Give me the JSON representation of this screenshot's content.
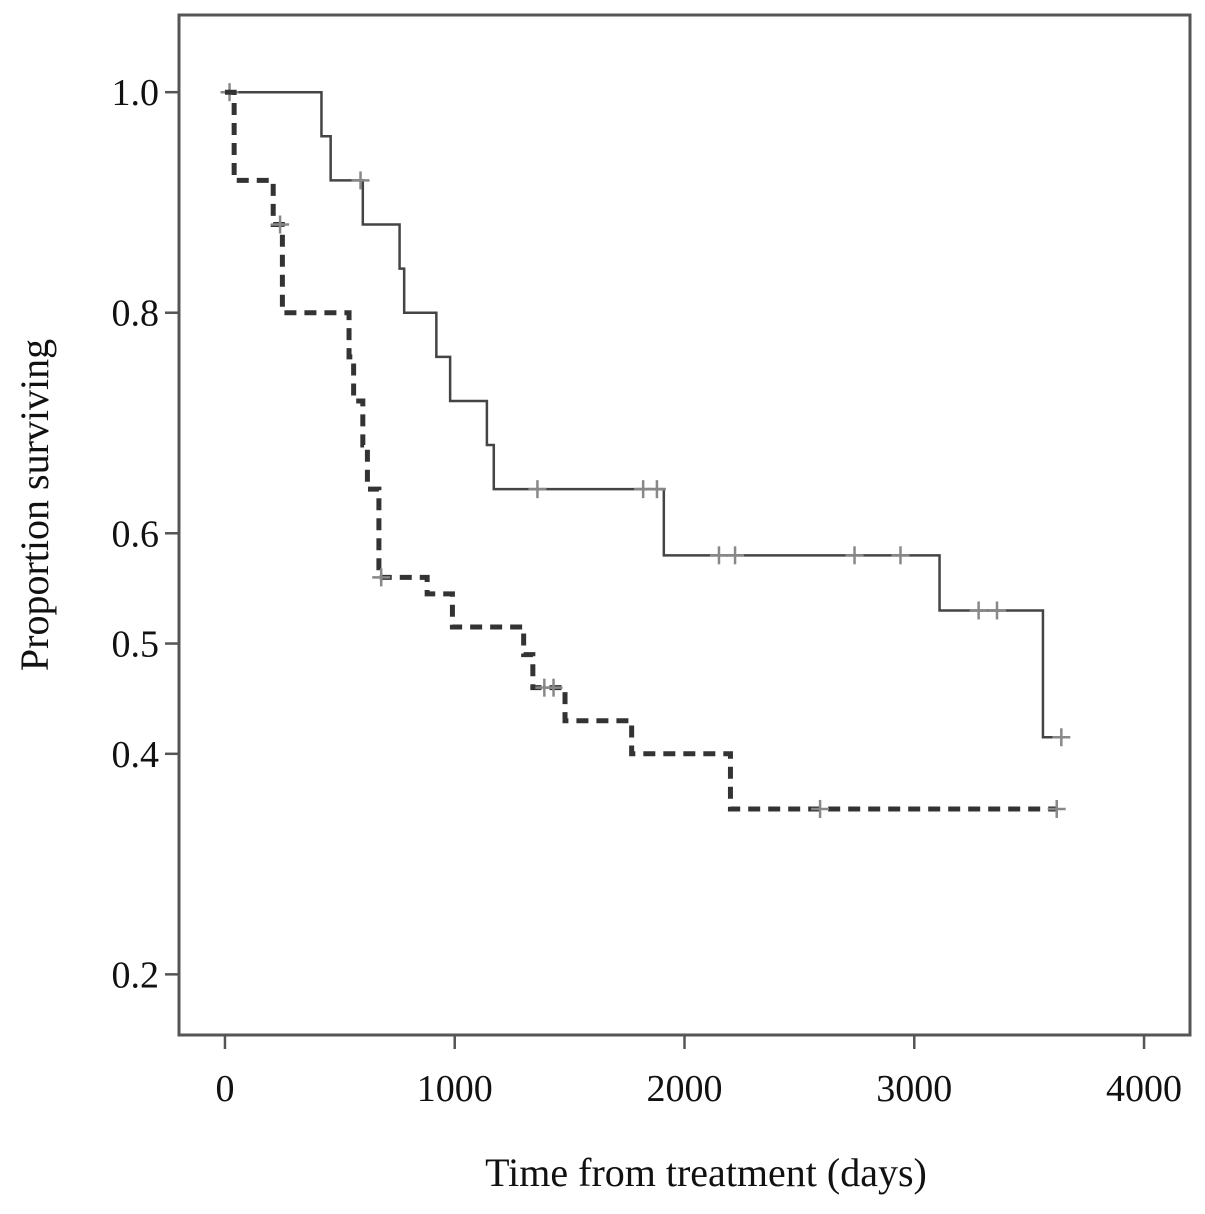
{
  "chart_data": {
    "type": "line",
    "title": "",
    "xlabel": "Time from treatment (days)",
    "ylabel": "Proportion surviving",
    "xlim": [
      -200,
      4200
    ],
    "ylim": [
      0.145,
      1.07
    ],
    "x_ticks": [
      0,
      1000,
      2000,
      3000,
      4000
    ],
    "x_tick_labels": [
      "0",
      "1000",
      "2000",
      "3000",
      "4000"
    ],
    "y_ticks": [
      0.2,
      0.4,
      0.5,
      0.6,
      0.8,
      1.0
    ],
    "y_tick_labels": [
      "0.2",
      "0.4",
      "0.5",
      "0.6",
      "0.8",
      "1.0"
    ],
    "grid": false,
    "legend": "none",
    "series": [
      {
        "style": "solid",
        "color": "#444444",
        "steps": [
          [
            0,
            1.0
          ],
          [
            420,
            0.96
          ],
          [
            460,
            0.92
          ],
          [
            600,
            0.88
          ],
          [
            760,
            0.84
          ],
          [
            780,
            0.8
          ],
          [
            920,
            0.76
          ],
          [
            980,
            0.72
          ],
          [
            1140,
            0.68
          ],
          [
            1170,
            0.64
          ],
          [
            1910,
            0.58
          ],
          [
            3110,
            0.53
          ],
          [
            3560,
            0.415
          ],
          [
            3640,
            0.415
          ]
        ],
        "censored": [
          [
            20,
            1.0
          ],
          [
            590,
            0.92
          ],
          [
            1360,
            0.64
          ],
          [
            1820,
            0.64
          ],
          [
            1880,
            0.64
          ],
          [
            2150,
            0.58
          ],
          [
            2220,
            0.58
          ],
          [
            2740,
            0.58
          ],
          [
            2940,
            0.58
          ],
          [
            3280,
            0.53
          ],
          [
            3360,
            0.53
          ],
          [
            3640,
            0.415
          ]
        ]
      },
      {
        "style": "dashed",
        "color": "#333333",
        "steps": [
          [
            0,
            1.0
          ],
          [
            40,
            0.92
          ],
          [
            210,
            0.88
          ],
          [
            250,
            0.8
          ],
          [
            540,
            0.76
          ],
          [
            560,
            0.72
          ],
          [
            600,
            0.68
          ],
          [
            620,
            0.64
          ],
          [
            670,
            0.56
          ],
          [
            880,
            0.545
          ],
          [
            990,
            0.515
          ],
          [
            1300,
            0.49
          ],
          [
            1340,
            0.46
          ],
          [
            1480,
            0.43
          ],
          [
            1770,
            0.4
          ],
          [
            2200,
            0.35
          ],
          [
            3620,
            0.35
          ]
        ],
        "censored": [
          [
            240,
            0.88
          ],
          [
            680,
            0.56
          ],
          [
            1390,
            0.46
          ],
          [
            1430,
            0.46
          ],
          [
            2590,
            0.35
          ],
          [
            3620,
            0.35
          ]
        ]
      }
    ]
  }
}
